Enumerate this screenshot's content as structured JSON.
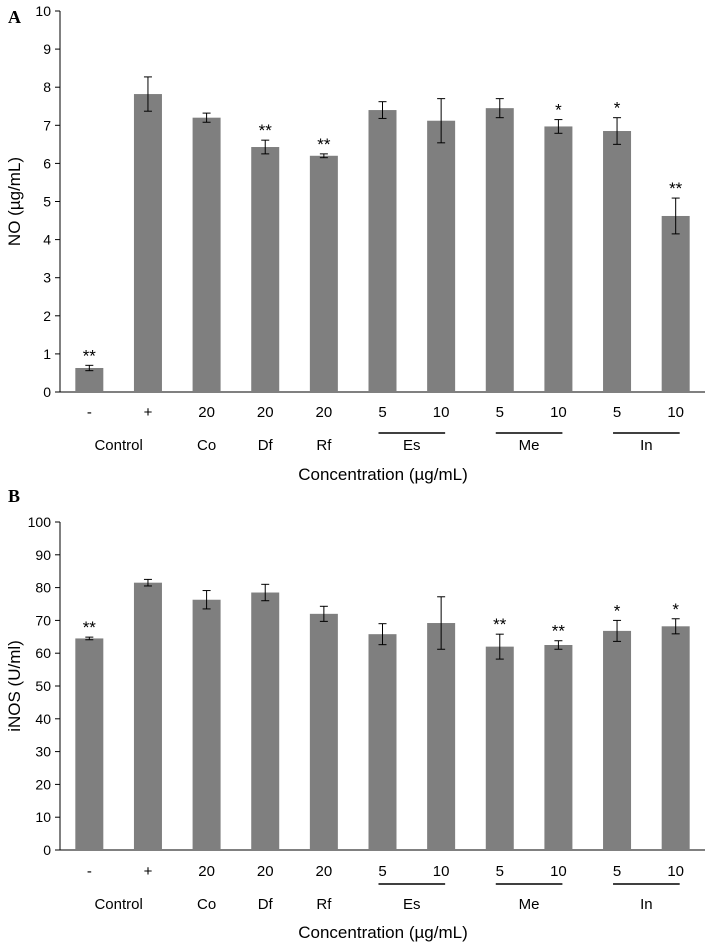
{
  "chart_data": [
    {
      "panel": "A",
      "type": "bar",
      "ylabel": "NO (µg/mL)",
      "xlabel": "Concentration (µg/mL)",
      "ylim": [
        0,
        10
      ],
      "yticks": [
        0,
        1,
        2,
        3,
        4,
        5,
        6,
        7,
        8,
        9,
        10
      ],
      "grid": false,
      "categories": [
        "-",
        "+",
        "20",
        "20",
        "20",
        "5",
        "10",
        "5",
        "10",
        "5",
        "10"
      ],
      "values": [
        0.63,
        7.82,
        7.2,
        6.43,
        6.2,
        7.4,
        7.12,
        7.45,
        6.97,
        6.85,
        4.62
      ],
      "errors": [
        0.07,
        0.45,
        0.12,
        0.18,
        0.05,
        0.22,
        0.58,
        0.25,
        0.18,
        0.35,
        0.47
      ],
      "significance": [
        "**",
        "",
        "",
        "**",
        "**",
        "",
        "",
        "",
        "*",
        "*",
        "**"
      ],
      "groups": [
        {
          "label": "Control",
          "from": 0,
          "to": 1,
          "underline": false
        },
        {
          "label": "Co",
          "from": 2,
          "to": 2,
          "underline": false
        },
        {
          "label": "Df",
          "from": 3,
          "to": 3,
          "underline": false
        },
        {
          "label": "Rf",
          "from": 4,
          "to": 4,
          "underline": false
        },
        {
          "label": "Es",
          "from": 5,
          "to": 6,
          "underline": true
        },
        {
          "label": "Me",
          "from": 7,
          "to": 8,
          "underline": true
        },
        {
          "label": "In",
          "from": 9,
          "to": 10,
          "underline": true
        }
      ],
      "bar_color": "#7f7f7f"
    },
    {
      "panel": "B",
      "type": "bar",
      "ylabel": "iNOS (U/ml)",
      "xlabel": "Concentration (µg/mL)",
      "ylim": [
        0,
        100
      ],
      "yticks": [
        0,
        10,
        20,
        30,
        40,
        50,
        60,
        70,
        80,
        90,
        100
      ],
      "grid": false,
      "categories": [
        "-",
        "+",
        "20",
        "20",
        "20",
        "5",
        "10",
        "5",
        "10",
        "5",
        "10"
      ],
      "values": [
        64.5,
        81.5,
        76.3,
        78.5,
        72,
        65.8,
        69.2,
        62,
        62.5,
        66.8,
        68.2
      ],
      "errors": [
        0.4,
        1.0,
        2.8,
        2.5,
        2.3,
        3.2,
        8.0,
        3.8,
        1.3,
        3.2,
        2.3
      ],
      "significance": [
        "**",
        "",
        "",
        "",
        "",
        "",
        "",
        "**",
        "**",
        "*",
        "*"
      ],
      "groups": [
        {
          "label": "Control",
          "from": 0,
          "to": 1,
          "underline": false
        },
        {
          "label": "Co",
          "from": 2,
          "to": 2,
          "underline": false
        },
        {
          "label": "Df",
          "from": 3,
          "to": 3,
          "underline": false
        },
        {
          "label": "Rf",
          "from": 4,
          "to": 4,
          "underline": false
        },
        {
          "label": "Es",
          "from": 5,
          "to": 6,
          "underline": true
        },
        {
          "label": "Me",
          "from": 7,
          "to": 8,
          "underline": true
        },
        {
          "label": "In",
          "from": 9,
          "to": 10,
          "underline": true
        }
      ],
      "bar_color": "#7f7f7f"
    }
  ]
}
